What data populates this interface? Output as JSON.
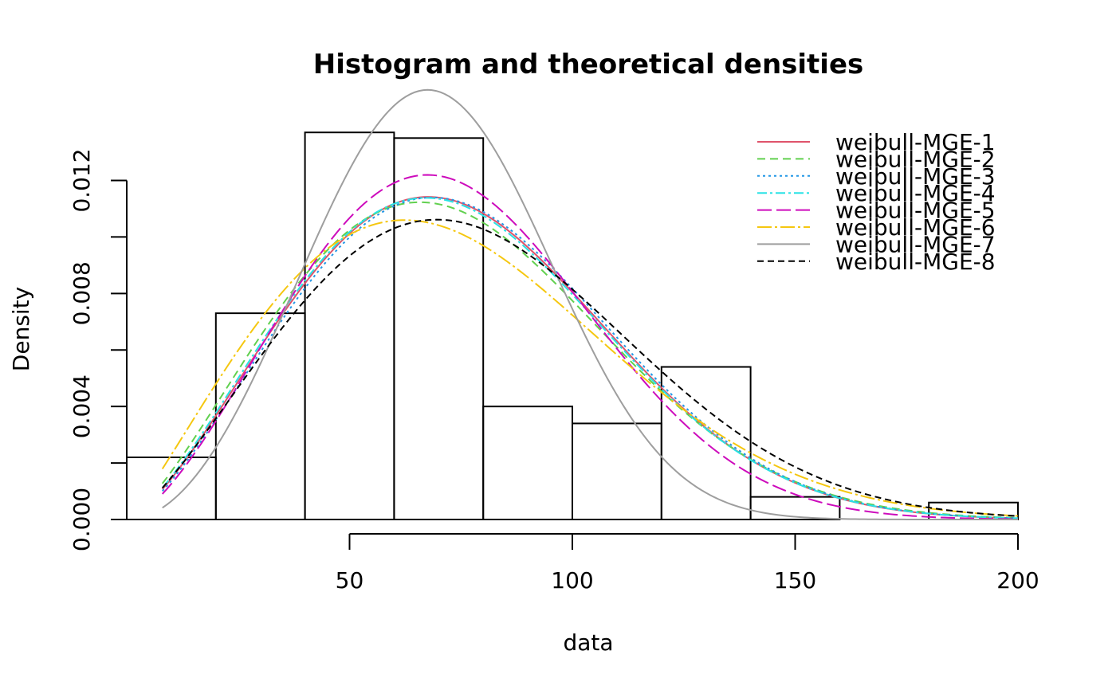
{
  "chart_data": {
    "type": "histogram",
    "title": "Histogram and theoretical densities",
    "xlabel": "data",
    "ylabel": "Density",
    "xlim": [
      0,
      200
    ],
    "ylim": [
      0,
      0.0135
    ],
    "x_ticks": [
      50,
      100,
      150,
      200
    ],
    "y_ticks": [
      0.0,
      0.002,
      0.004,
      0.006,
      0.008,
      0.01,
      0.012
    ],
    "y_tick_labels": [
      "0.000",
      "",
      "0.004",
      "",
      "0.008",
      "",
      "0.012"
    ],
    "legend_position": "top-right",
    "histogram": {
      "breaks": [
        0,
        20,
        40,
        60,
        80,
        100,
        120,
        140,
        160,
        180,
        200
      ],
      "densities": [
        0.0022,
        0.0073,
        0.0137,
        0.0135,
        0.004,
        0.0034,
        0.0054,
        0.0008,
        0.0,
        0.0006
      ]
    },
    "series": [
      {
        "name": "weibull-MGE-1",
        "color": "#DF536B",
        "dash": "",
        "shape": 2.38,
        "scale": 85.1
      },
      {
        "name": "weibull-MGE-2",
        "color": "#61D04F",
        "dash": "10,6",
        "shape": 2.3,
        "scale": 84.3
      },
      {
        "name": "weibull-MGE-3",
        "color": "#2297E6",
        "dash": "3,4",
        "shape": 2.4,
        "scale": 85.8
      },
      {
        "name": "weibull-MGE-4",
        "color": "#28E2E5",
        "dash": "12,4,3,4",
        "shape": 2.36,
        "scale": 84.8
      },
      {
        "name": "weibull-MGE-5",
        "color": "#CD0BBC",
        "dash": "18,6",
        "shape": 2.5,
        "scale": 82.8
      },
      {
        "name": "weibull-MGE-6",
        "color": "#F5C710",
        "dash": "18,4,3,4",
        "shape": 2.12,
        "scale": 84.2
      },
      {
        "name": "weibull-MGE-7",
        "color": "#9E9E9E",
        "dash": "",
        "shape": 3.0,
        "scale": 77.3
      },
      {
        "name": "weibull-MGE-8",
        "color": "#000000",
        "dash": "8,5",
        "shape": 2.3,
        "scale": 89.2
      }
    ],
    "curve_x_range": [
      8,
      200
    ]
  }
}
